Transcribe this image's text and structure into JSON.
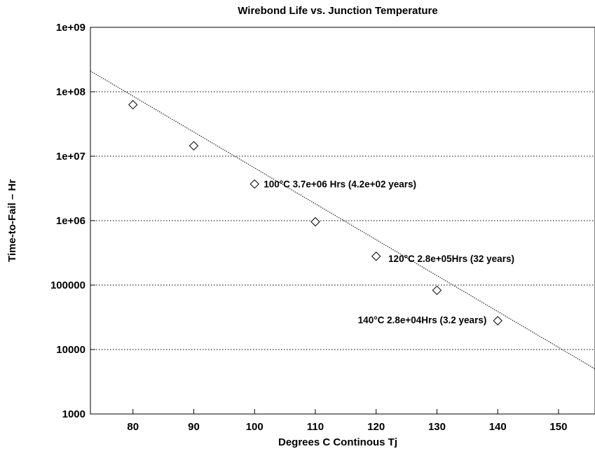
{
  "chart_data": {
    "type": "scatter",
    "title": "Wirebond Life vs. Junction Temperature",
    "xlabel": "Degrees C Continous Tj",
    "ylabel": "Time-to-Fail – Hr",
    "x_scale": "linear",
    "y_scale": "log",
    "xlim": [
      73,
      156
    ],
    "ylim": [
      1000,
      1000000000
    ],
    "x_ticks": [
      80,
      90,
      100,
      110,
      120,
      130,
      140,
      150
    ],
    "x_tick_labels": [
      "80",
      "90",
      "100",
      "110",
      "120",
      "130",
      "140",
      "150"
    ],
    "y_ticks": [
      1000,
      10000,
      100000,
      1000000,
      10000000,
      100000000,
      1000000000
    ],
    "y_tick_labels": [
      "1000",
      "10000",
      "100000",
      "1e+06",
      "1e+07",
      "1e+08",
      "1e+09"
    ],
    "grid": "horizontal-dotted",
    "series": [
      {
        "marker": "diamond",
        "x": [
          80,
          90,
          100,
          110,
          120,
          130,
          140
        ],
        "y": [
          63000000,
          14500000,
          3700000,
          960000,
          280000,
          83000,
          28000
        ]
      }
    ],
    "fit_line": {
      "style": "dotted",
      "x": [
        73,
        156
      ],
      "y": [
        210000000,
        5000
      ]
    },
    "annotations": [
      {
        "text": "100°C  3.7e+06 Hrs (4.2e+02 years)",
        "x": 101.5,
        "y": 3700000
      },
      {
        "text": "120°C  2.8e+05Hrs (32 years)",
        "x": 122,
        "y": 260000
      },
      {
        "text": "140°C  2.8e+04Hrs (3.2 years)",
        "x": 117,
        "y": 29000
      }
    ]
  }
}
